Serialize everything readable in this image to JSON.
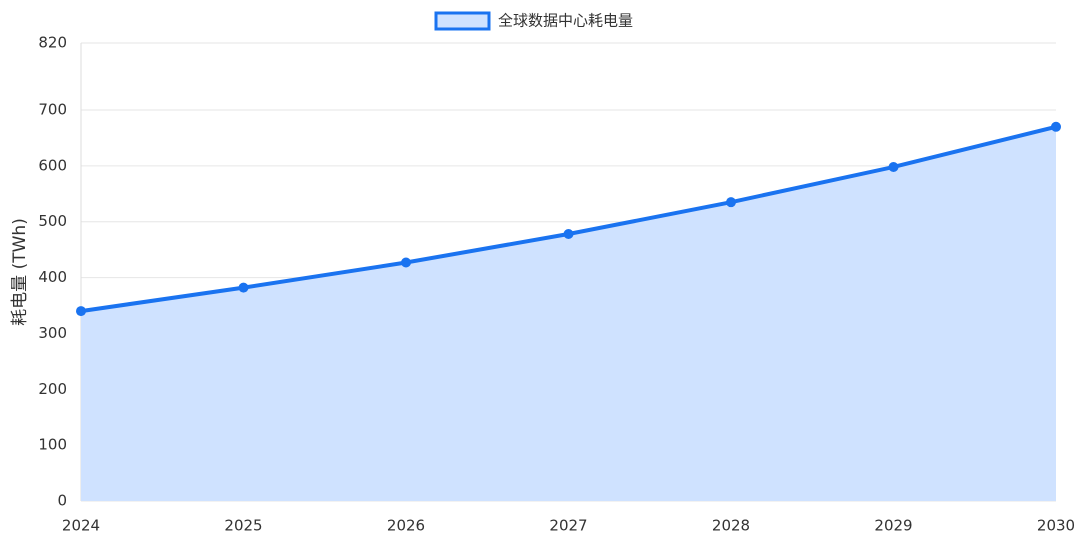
{
  "chart_data": {
    "type": "area",
    "legend_position": "top",
    "y_label": "耗电量 (TWh)",
    "categories": [
      "2024",
      "2025",
      "2026",
      "2027",
      "2028",
      "2029",
      "2030"
    ],
    "series": [
      {
        "name": "全球数据中心耗电量",
        "color": "#1a73f0",
        "fill": "#cfe2ff",
        "values": [
          340,
          382,
          427,
          478,
          535,
          598,
          670
        ]
      }
    ],
    "ylim": [
      0,
      820
    ],
    "yticks": [
      0,
      100,
      200,
      300,
      400,
      500,
      600,
      700,
      820
    ],
    "grid": true
  }
}
